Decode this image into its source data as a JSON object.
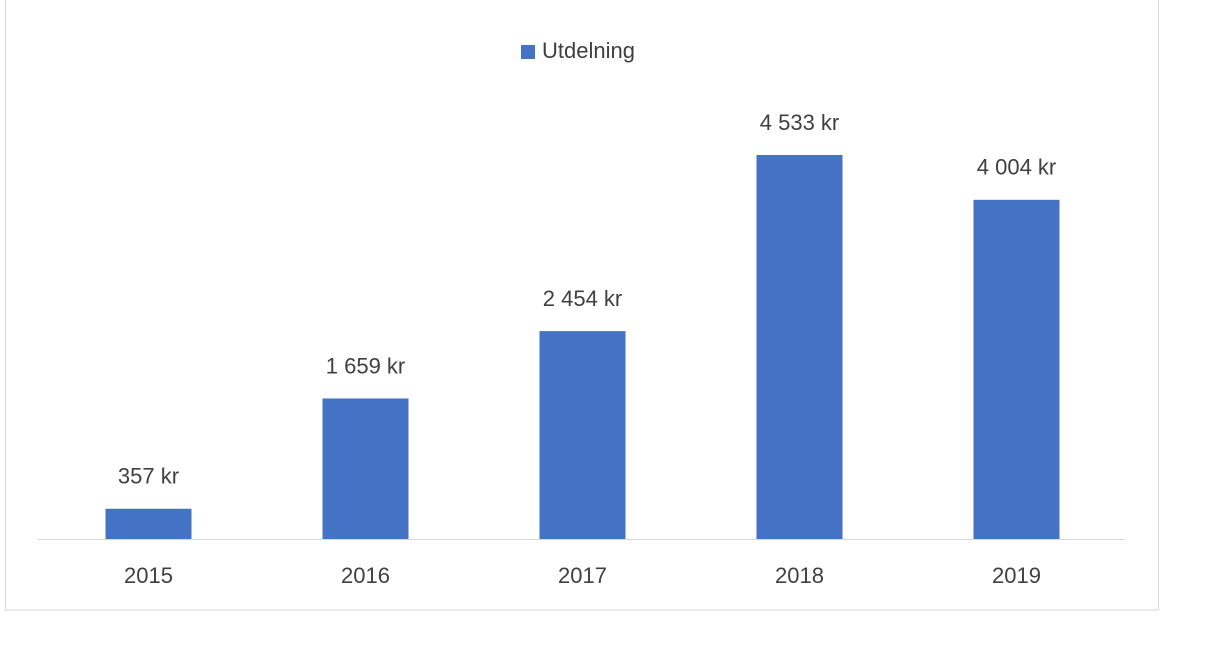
{
  "chart_data": {
    "type": "bar",
    "categories": [
      "2015",
      "2016",
      "2017",
      "2018",
      "2019"
    ],
    "series": [
      {
        "name": "Utdelning",
        "color": "#4472c4",
        "values": [
          357,
          1659,
          2454,
          4533,
          4004
        ],
        "value_labels": [
          "357 kr",
          "1 659 kr",
          "2 454 kr",
          "4 533 kr",
          "4 004 kr"
        ]
      }
    ],
    "legend": "top"
  }
}
